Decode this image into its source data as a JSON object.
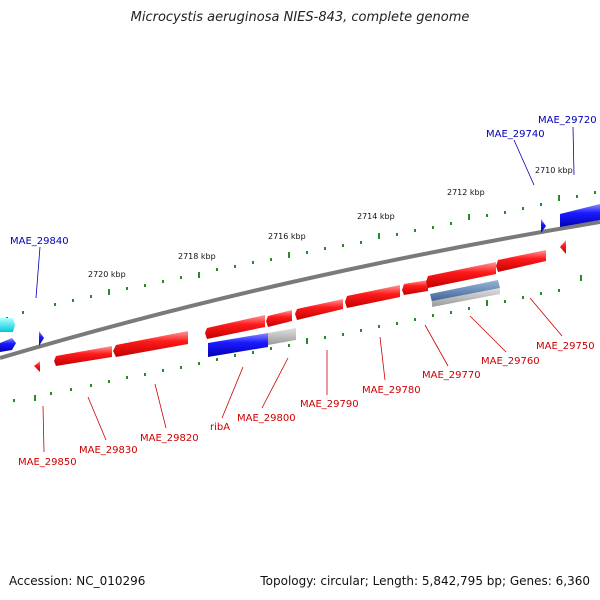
{
  "header": {
    "title": "Microcystis aeruginosa NIES-843, complete genome"
  },
  "footer": {
    "accession": "Accession: NC_010296",
    "topology": "Topology: circular; Length: 5,842,795 bp; Genes: 6,360"
  },
  "colors": {
    "backbone": "#7a7a7a",
    "forward_gene": "#ee1111",
    "reverse_gene": "#1111dd",
    "tick": "#2a8a2a",
    "rna_gene": "#00dddd",
    "pseudo_gene": "#aaaaaa",
    "gene_cluster": "#5577aa",
    "label_red": "#cc0000",
    "label_blue": "#0000bb"
  },
  "scale_labels": [
    "2720 kbp",
    "2718 kbp",
    "2716 kbp",
    "2714 kbp",
    "2712 kbp",
    "2710 kbp"
  ],
  "gene_labels": [
    {
      "text": "MAE_29720",
      "color": "blue"
    },
    {
      "text": "MAE_29740",
      "color": "blue"
    },
    {
      "text": "MAE_29840",
      "color": "blue"
    },
    {
      "text": "MAE_29750",
      "color": "red"
    },
    {
      "text": "MAE_29760",
      "color": "red"
    },
    {
      "text": "MAE_29770",
      "color": "red"
    },
    {
      "text": "MAE_29780",
      "color": "red"
    },
    {
      "text": "MAE_29790",
      "color": "red"
    },
    {
      "text": "MAE_29800",
      "color": "red"
    },
    {
      "text": "ribA",
      "color": "red"
    },
    {
      "text": "MAE_29820",
      "color": "red"
    },
    {
      "text": "MAE_29830",
      "color": "red"
    },
    {
      "text": "MAE_29850",
      "color": "red"
    }
  ]
}
